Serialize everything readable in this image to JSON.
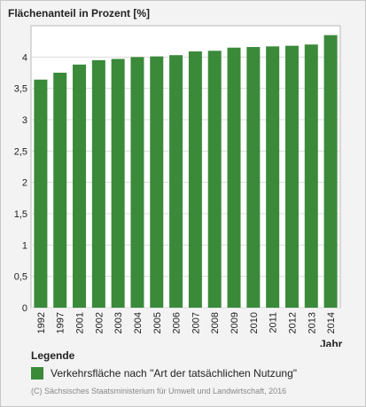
{
  "chart_data": {
    "type": "bar",
    "ylabel": "Flächenanteil in Prozent [%]",
    "xlabel": "Jahr",
    "categories": [
      "1992",
      "1997",
      "2001",
      "2002",
      "2003",
      "2004",
      "2005",
      "2006",
      "2007",
      "2008",
      "2009",
      "2010",
      "2011",
      "2012",
      "2013",
      "2014"
    ],
    "series": [
      {
        "name": "Verkehrsfläche nach \"Art der tatsächlichen Nutzung\"",
        "values": [
          3.64,
          3.75,
          3.88,
          3.95,
          3.97,
          4.0,
          4.01,
          4.03,
          4.09,
          4.1,
          4.15,
          4.16,
          4.17,
          4.18,
          4.2,
          4.35
        ],
        "color": "#3a8a3a"
      }
    ],
    "ylim": [
      0,
      4.5
    ],
    "yticks": [
      0,
      0.5,
      1,
      1.5,
      2,
      2.5,
      3,
      3.5,
      4
    ],
    "ytick_labels": [
      "0",
      "0,5",
      "1",
      "1,5",
      "2",
      "2,5",
      "3",
      "3,5",
      "4"
    ],
    "grid": true,
    "legend_position": "bottom"
  },
  "legend": {
    "title": "Legende"
  },
  "footer": {
    "copyright": "(C) Sächsisches Staatsministerium für Umwelt und Landwirtschaft, 2016"
  }
}
